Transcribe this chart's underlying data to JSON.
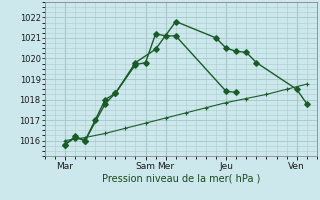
{
  "xlabel": "Pression niveau de la mer( hPa )",
  "bg_color": "#cce8ec",
  "grid_color": "#aacccc",
  "line_color": "#1a5c28",
  "ylim": [
    1015.4,
    1022.6
  ],
  "yticks": [
    1016,
    1017,
    1018,
    1019,
    1020,
    1021,
    1022
  ],
  "xtick_labels": [
    "Mar",
    "Sam",
    "Mer",
    "Jeu",
    "Ven"
  ],
  "xtick_positions": [
    0,
    4.0,
    5.0,
    8.0,
    11.5
  ],
  "xlim": [
    -0.3,
    12.3
  ],
  "xmax": 12.0,
  "series1_x": [
    0,
    0.5,
    1.0,
    1.5,
    2.0,
    2.5,
    3.5,
    4.0,
    4.5,
    5.0,
    5.5,
    8.0,
    8.5
  ],
  "series1_y": [
    1015.8,
    1016.15,
    1016.0,
    1017.0,
    1018.0,
    1018.3,
    1019.7,
    1019.8,
    1021.2,
    1021.1,
    1021.1,
    1018.4,
    1018.35
  ],
  "series2_x": [
    0,
    0.5,
    1.0,
    2.0,
    2.5,
    3.5,
    4.5,
    5.5,
    7.5,
    8.0,
    8.5,
    9.0,
    9.5,
    11.5,
    12.0
  ],
  "series2_y": [
    1015.8,
    1016.2,
    1016.0,
    1017.8,
    1018.3,
    1019.8,
    1020.45,
    1021.8,
    1021.0,
    1020.5,
    1020.35,
    1020.3,
    1019.8,
    1018.5,
    1017.8
  ],
  "series3_x": [
    0,
    1,
    2,
    3,
    4,
    5,
    6,
    7,
    8,
    9,
    10,
    11,
    12
  ],
  "series3_y": [
    1016.0,
    1016.15,
    1016.35,
    1016.6,
    1016.85,
    1017.1,
    1017.35,
    1017.6,
    1017.85,
    1018.05,
    1018.25,
    1018.5,
    1018.75
  ]
}
